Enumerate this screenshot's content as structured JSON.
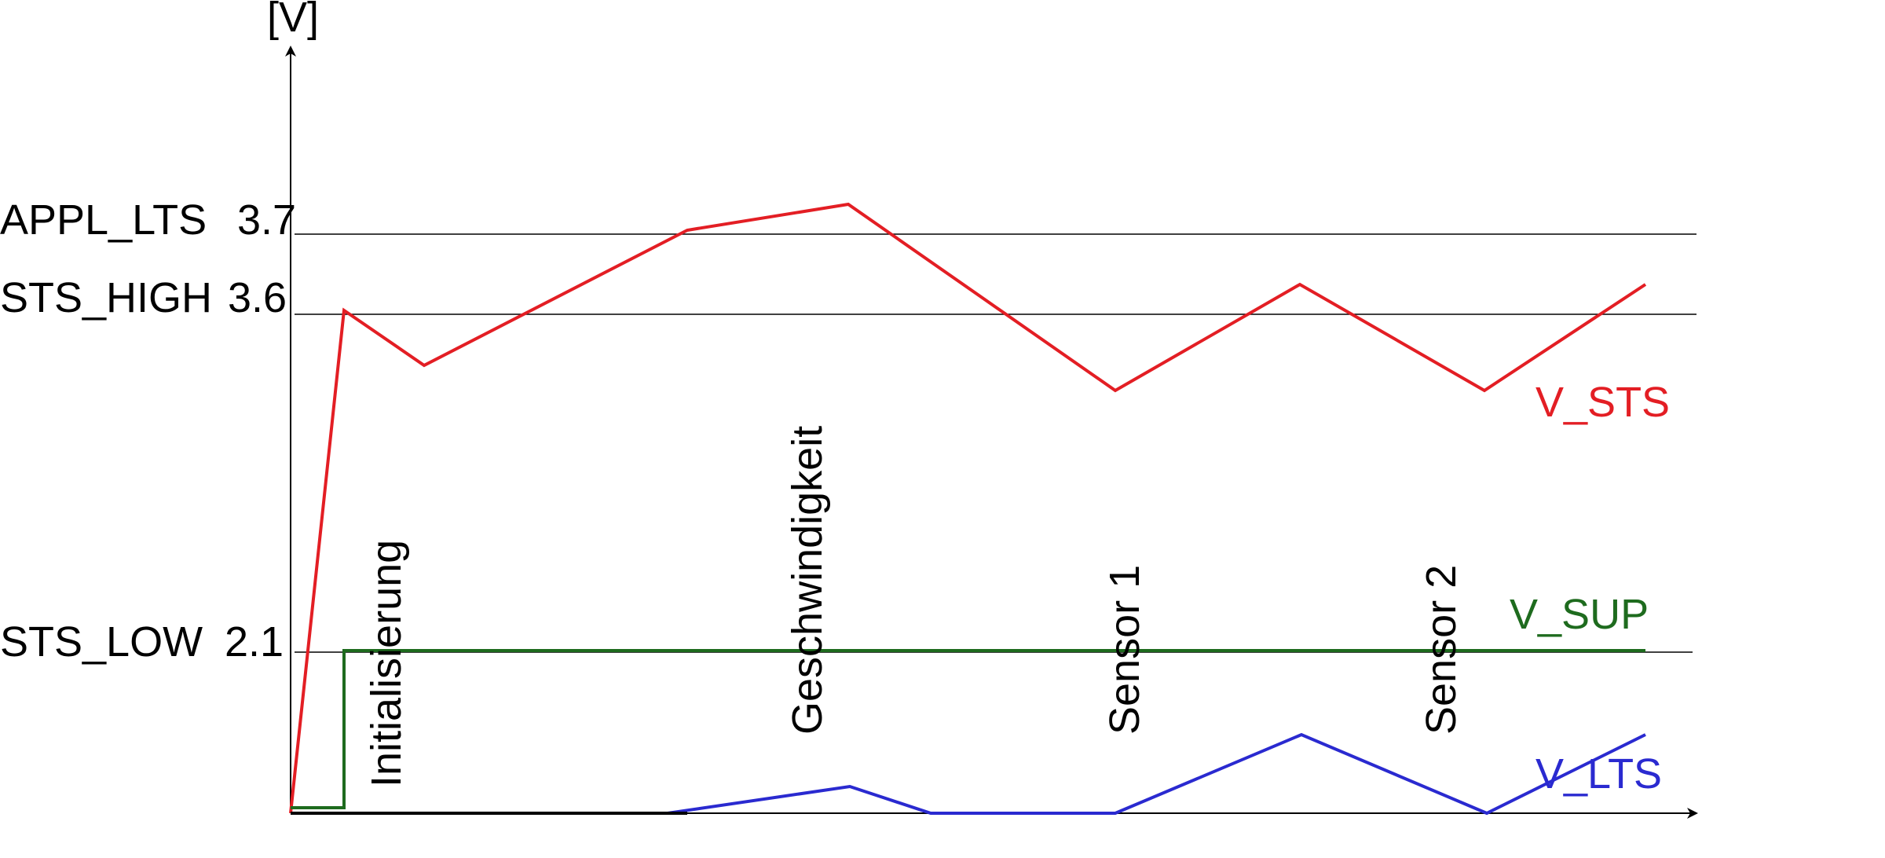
{
  "y_axis_unit": "[V]",
  "thresholds": [
    {
      "name": "APPL_LTS",
      "value_label": "3.7"
    },
    {
      "name": "STS_HIGH",
      "value_label": "3.6"
    },
    {
      "name": "STS_LOW",
      "value_label": "2.1"
    }
  ],
  "phases": [
    "Initialisierung",
    "Geschwindigkeit",
    "Sensor 1",
    "Sensor 2"
  ],
  "series": [
    {
      "name": "V_STS",
      "color": "#e31e24"
    },
    {
      "name": "V_SUP",
      "color": "#1e6b1e"
    },
    {
      "name": "V_LTS",
      "color": "#2a2ad0"
    }
  ]
}
